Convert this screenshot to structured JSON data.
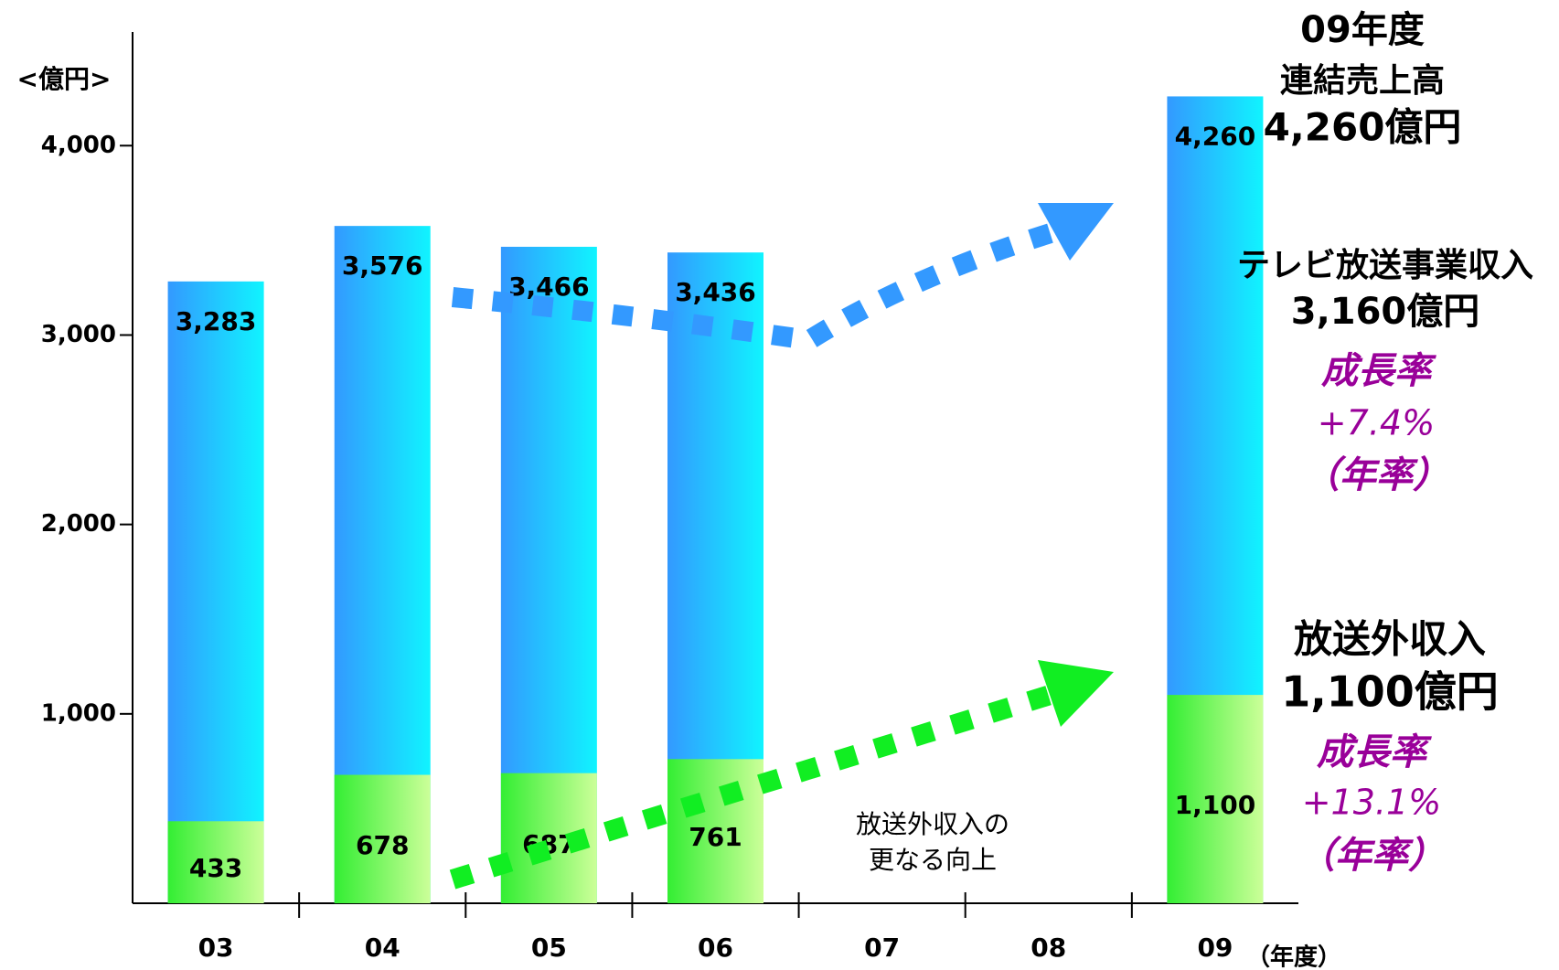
{
  "chart_data": {
    "type": "bar",
    "categories": [
      "03",
      "04",
      "05",
      "06",
      "07",
      "08",
      "09"
    ],
    "series": [
      {
        "color": "#3399ff",
        "values": [
          3283,
          3576,
          3466,
          3436,
          null,
          null,
          4260
        ],
        "value_labels": [
          "3,283",
          "3,576",
          "3,466",
          "3,436",
          null,
          null,
          "4,260"
        ]
      },
      {
        "color": "#33ee33",
        "values": [
          433,
          678,
          687,
          761,
          null,
          null,
          1100
        ],
        "value_labels": [
          "433",
          "678",
          "687",
          "761",
          null,
          null,
          "1,100"
        ]
      }
    ],
    "ylim": [
      0,
      4600
    ],
    "yticks": [
      {
        "value": 1000,
        "label": "1,000"
      },
      {
        "value": 2000,
        "label": "2,000"
      },
      {
        "value": 3000,
        "label": "3,000"
      },
      {
        "value": 4000,
        "label": "4,000"
      }
    ],
    "annotations": {
      "unit": "<億円>",
      "x_unit": "（年度）",
      "total": [
        "09年度",
        "連結売上高",
        "4,260億円"
      ],
      "tv": [
        "テレビ放送事業収入",
        "3,160億円",
        "成長率",
        "+7.4%",
        "（年率）"
      ],
      "non_tv": [
        "放送外収入",
        "1,100億円",
        "成長率",
        "+13.1%",
        "（年率）"
      ],
      "note": [
        "放送外収入の",
        "更なる向上"
      ]
    }
  }
}
